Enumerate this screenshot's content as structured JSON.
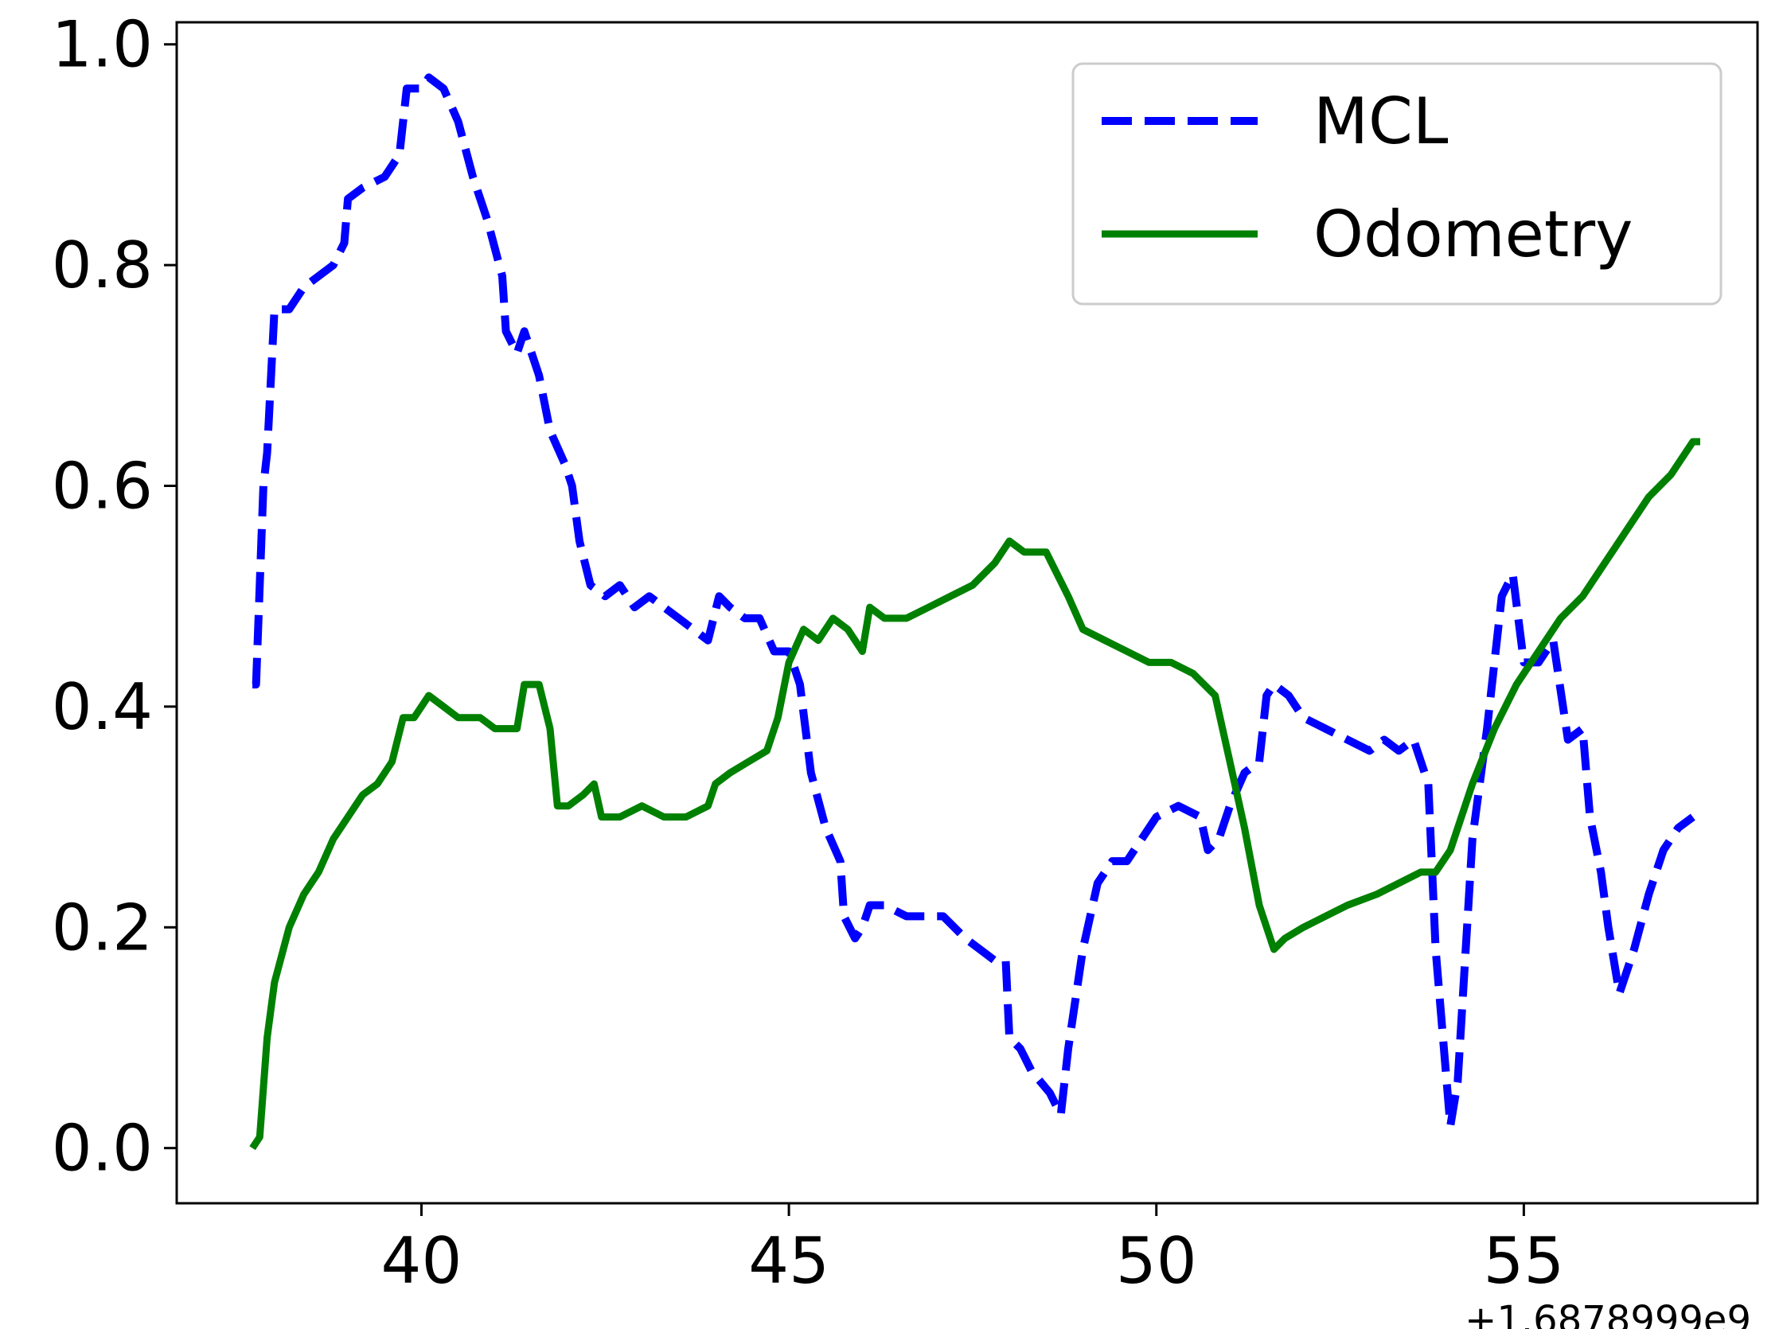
{
  "chart_data": {
    "type": "line",
    "title": "",
    "xlabel": "",
    "ylabel": "",
    "x_offset_label": "+1.6878999e9",
    "xlim": [
      36.67,
      58.18
    ],
    "ylim": [
      -0.05,
      1.02
    ],
    "x_ticks": [
      "40",
      "45",
      "50",
      "55"
    ],
    "y_ticks": [
      "0.0",
      "0.2",
      "0.4",
      "0.6",
      "0.8",
      "1.0"
    ],
    "grid": false,
    "legend_position": "top-right",
    "series": [
      {
        "name": "MCL",
        "color": "#0000ff",
        "style": "dashed",
        "points": [
          [
            37.7,
            0.42
          ],
          [
            37.75,
            0.42
          ],
          [
            37.85,
            0.6
          ],
          [
            37.9,
            0.63
          ],
          [
            38.0,
            0.76
          ],
          [
            38.2,
            0.76
          ],
          [
            38.4,
            0.78
          ],
          [
            38.6,
            0.79
          ],
          [
            38.8,
            0.8
          ],
          [
            38.95,
            0.82
          ],
          [
            39.0,
            0.86
          ],
          [
            39.2,
            0.87
          ],
          [
            39.5,
            0.88
          ],
          [
            39.7,
            0.9
          ],
          [
            39.8,
            0.96
          ],
          [
            40.0,
            0.96
          ],
          [
            40.1,
            0.97
          ],
          [
            40.3,
            0.96
          ],
          [
            40.5,
            0.93
          ],
          [
            40.7,
            0.88
          ],
          [
            40.9,
            0.84
          ],
          [
            41.1,
            0.79
          ],
          [
            41.15,
            0.74
          ],
          [
            41.3,
            0.72
          ],
          [
            41.4,
            0.74
          ],
          [
            41.6,
            0.7
          ],
          [
            41.75,
            0.65
          ],
          [
            41.95,
            0.62
          ],
          [
            42.05,
            0.6
          ],
          [
            42.15,
            0.55
          ],
          [
            42.3,
            0.51
          ],
          [
            42.5,
            0.5
          ],
          [
            42.7,
            0.51
          ],
          [
            42.9,
            0.49
          ],
          [
            43.1,
            0.5
          ],
          [
            43.3,
            0.49
          ],
          [
            43.5,
            0.48
          ],
          [
            43.7,
            0.47
          ],
          [
            43.9,
            0.46
          ],
          [
            44.05,
            0.5
          ],
          [
            44.2,
            0.49
          ],
          [
            44.4,
            0.48
          ],
          [
            44.6,
            0.48
          ],
          [
            44.8,
            0.45
          ],
          [
            45.0,
            0.45
          ],
          [
            45.15,
            0.42
          ],
          [
            45.3,
            0.34
          ],
          [
            45.5,
            0.29
          ],
          [
            45.7,
            0.26
          ],
          [
            45.75,
            0.21
          ],
          [
            45.9,
            0.19
          ],
          [
            46.0,
            0.2
          ],
          [
            46.1,
            0.22
          ],
          [
            46.3,
            0.22
          ],
          [
            46.6,
            0.21
          ],
          [
            46.9,
            0.21
          ],
          [
            47.1,
            0.21
          ],
          [
            47.4,
            0.19
          ],
          [
            47.6,
            0.18
          ],
          [
            47.8,
            0.17
          ],
          [
            47.95,
            0.17
          ],
          [
            48.0,
            0.1
          ],
          [
            48.15,
            0.09
          ],
          [
            48.3,
            0.07
          ],
          [
            48.55,
            0.05
          ],
          [
            48.7,
            0.03
          ],
          [
            48.8,
            0.09
          ],
          [
            49.0,
            0.18
          ],
          [
            49.2,
            0.24
          ],
          [
            49.4,
            0.26
          ],
          [
            49.6,
            0.26
          ],
          [
            49.8,
            0.28
          ],
          [
            50.0,
            0.3
          ],
          [
            50.3,
            0.31
          ],
          [
            50.6,
            0.3
          ],
          [
            50.7,
            0.27
          ],
          [
            50.85,
            0.28
          ],
          [
            51.0,
            0.31
          ],
          [
            51.2,
            0.34
          ],
          [
            51.4,
            0.35
          ],
          [
            51.5,
            0.41
          ],
          [
            51.6,
            0.42
          ],
          [
            51.8,
            0.41
          ],
          [
            52.0,
            0.39
          ],
          [
            52.3,
            0.38
          ],
          [
            52.6,
            0.37
          ],
          [
            52.9,
            0.36
          ],
          [
            53.1,
            0.37
          ],
          [
            53.3,
            0.36
          ],
          [
            53.5,
            0.37
          ],
          [
            53.7,
            0.33
          ],
          [
            53.8,
            0.18
          ],
          [
            54.0,
            0.02
          ],
          [
            54.1,
            0.06
          ],
          [
            54.3,
            0.28
          ],
          [
            54.5,
            0.38
          ],
          [
            54.7,
            0.5
          ],
          [
            54.85,
            0.52
          ],
          [
            55.0,
            0.44
          ],
          [
            55.2,
            0.44
          ],
          [
            55.4,
            0.46
          ],
          [
            55.6,
            0.37
          ],
          [
            55.8,
            0.38
          ],
          [
            55.9,
            0.3
          ],
          [
            56.05,
            0.25
          ],
          [
            56.15,
            0.2
          ],
          [
            56.3,
            0.14
          ],
          [
            56.5,
            0.18
          ],
          [
            56.7,
            0.23
          ],
          [
            56.9,
            0.27
          ],
          [
            57.1,
            0.29
          ],
          [
            57.3,
            0.3
          ]
        ]
      },
      {
        "name": "Odometry",
        "color": "#008000",
        "style": "solid",
        "points": [
          [
            37.7,
            0.0
          ],
          [
            37.8,
            0.01
          ],
          [
            37.9,
            0.1
          ],
          [
            38.0,
            0.15
          ],
          [
            38.2,
            0.2
          ],
          [
            38.4,
            0.23
          ],
          [
            38.6,
            0.25
          ],
          [
            38.8,
            0.28
          ],
          [
            39.0,
            0.3
          ],
          [
            39.2,
            0.32
          ],
          [
            39.4,
            0.33
          ],
          [
            39.6,
            0.35
          ],
          [
            39.75,
            0.39
          ],
          [
            39.9,
            0.39
          ],
          [
            40.1,
            0.41
          ],
          [
            40.3,
            0.4
          ],
          [
            40.5,
            0.39
          ],
          [
            40.8,
            0.39
          ],
          [
            41.0,
            0.38
          ],
          [
            41.3,
            0.38
          ],
          [
            41.4,
            0.42
          ],
          [
            41.6,
            0.42
          ],
          [
            41.75,
            0.38
          ],
          [
            41.85,
            0.31
          ],
          [
            42.0,
            0.31
          ],
          [
            42.2,
            0.32
          ],
          [
            42.35,
            0.33
          ],
          [
            42.45,
            0.3
          ],
          [
            42.7,
            0.3
          ],
          [
            43.0,
            0.31
          ],
          [
            43.3,
            0.3
          ],
          [
            43.6,
            0.3
          ],
          [
            43.9,
            0.31
          ],
          [
            44.0,
            0.33
          ],
          [
            44.2,
            0.34
          ],
          [
            44.45,
            0.35
          ],
          [
            44.7,
            0.36
          ],
          [
            44.85,
            0.39
          ],
          [
            45.0,
            0.44
          ],
          [
            45.2,
            0.47
          ],
          [
            45.4,
            0.46
          ],
          [
            45.6,
            0.48
          ],
          [
            45.8,
            0.47
          ],
          [
            46.0,
            0.45
          ],
          [
            46.1,
            0.49
          ],
          [
            46.3,
            0.48
          ],
          [
            46.6,
            0.48
          ],
          [
            46.9,
            0.49
          ],
          [
            47.2,
            0.5
          ],
          [
            47.5,
            0.51
          ],
          [
            47.8,
            0.53
          ],
          [
            48.0,
            0.55
          ],
          [
            48.2,
            0.54
          ],
          [
            48.5,
            0.54
          ],
          [
            48.8,
            0.5
          ],
          [
            49.0,
            0.47
          ],
          [
            49.3,
            0.46
          ],
          [
            49.6,
            0.45
          ],
          [
            49.9,
            0.44
          ],
          [
            50.2,
            0.44
          ],
          [
            50.5,
            0.43
          ],
          [
            50.8,
            0.41
          ],
          [
            51.0,
            0.35
          ],
          [
            51.2,
            0.29
          ],
          [
            51.4,
            0.22
          ],
          [
            51.6,
            0.18
          ],
          [
            51.75,
            0.19
          ],
          [
            52.0,
            0.2
          ],
          [
            52.3,
            0.21
          ],
          [
            52.6,
            0.22
          ],
          [
            53.0,
            0.23
          ],
          [
            53.3,
            0.24
          ],
          [
            53.6,
            0.25
          ],
          [
            53.8,
            0.25
          ],
          [
            54.0,
            0.27
          ],
          [
            54.3,
            0.33
          ],
          [
            54.6,
            0.38
          ],
          [
            54.9,
            0.42
          ],
          [
            55.2,
            0.45
          ],
          [
            55.5,
            0.48
          ],
          [
            55.8,
            0.5
          ],
          [
            56.1,
            0.53
          ],
          [
            56.4,
            0.56
          ],
          [
            56.7,
            0.59
          ],
          [
            57.0,
            0.61
          ],
          [
            57.3,
            0.64
          ],
          [
            57.4,
            0.64
          ]
        ]
      }
    ]
  }
}
